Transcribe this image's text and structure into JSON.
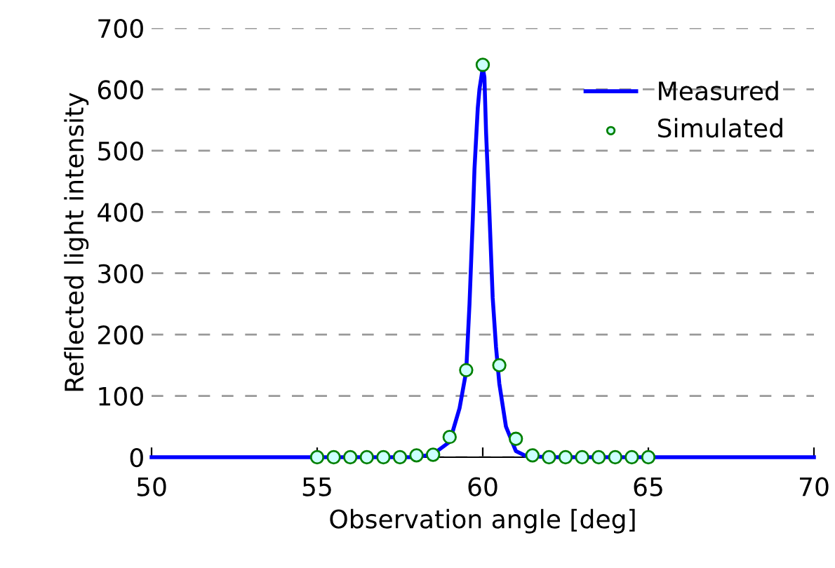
{
  "chart_data": {
    "type": "line",
    "xlabel": "Observation angle [deg]",
    "ylabel": "Reflected light intensity",
    "xlim": [
      50,
      70
    ],
    "xticks": [
      50,
      55,
      60,
      65,
      70
    ],
    "ylim": [
      0,
      700
    ],
    "yticks": [
      0,
      100,
      200,
      300,
      400,
      500,
      600,
      700
    ],
    "grid": "y",
    "legend": "top right",
    "series": [
      {
        "name": "Measured",
        "color": "#0000ff",
        "marker": "none",
        "line_style": "solid",
        "x": [
          50,
          55,
          58,
          58.5,
          59,
          59.3,
          59.5,
          59.6,
          59.7,
          59.75,
          59.85,
          59.9,
          60,
          60.05,
          60.1,
          60.2,
          60.3,
          60.4,
          60.5,
          60.7,
          61,
          61.3,
          62,
          70
        ],
        "values": [
          0,
          0,
          0,
          5,
          25,
          80,
          140,
          250,
          390,
          470,
          570,
          600,
          635,
          620,
          530,
          400,
          260,
          180,
          120,
          50,
          10,
          2,
          0,
          0
        ]
      },
      {
        "name": "Simulated",
        "type": "scatter",
        "color": "#008000",
        "marker": "circle",
        "x": [
          55,
          55.5,
          56,
          56.5,
          57,
          57.5,
          58,
          58.5,
          59,
          59.5,
          60,
          60.5,
          61,
          61.5,
          62,
          62.5,
          63,
          63.5,
          64,
          64.5,
          65
        ],
        "values": [
          0,
          0,
          0,
          0,
          0,
          0,
          3,
          4,
          33,
          142,
          640,
          150,
          30,
          3,
          0,
          0,
          0,
          0,
          0,
          0,
          0
        ]
      }
    ]
  }
}
